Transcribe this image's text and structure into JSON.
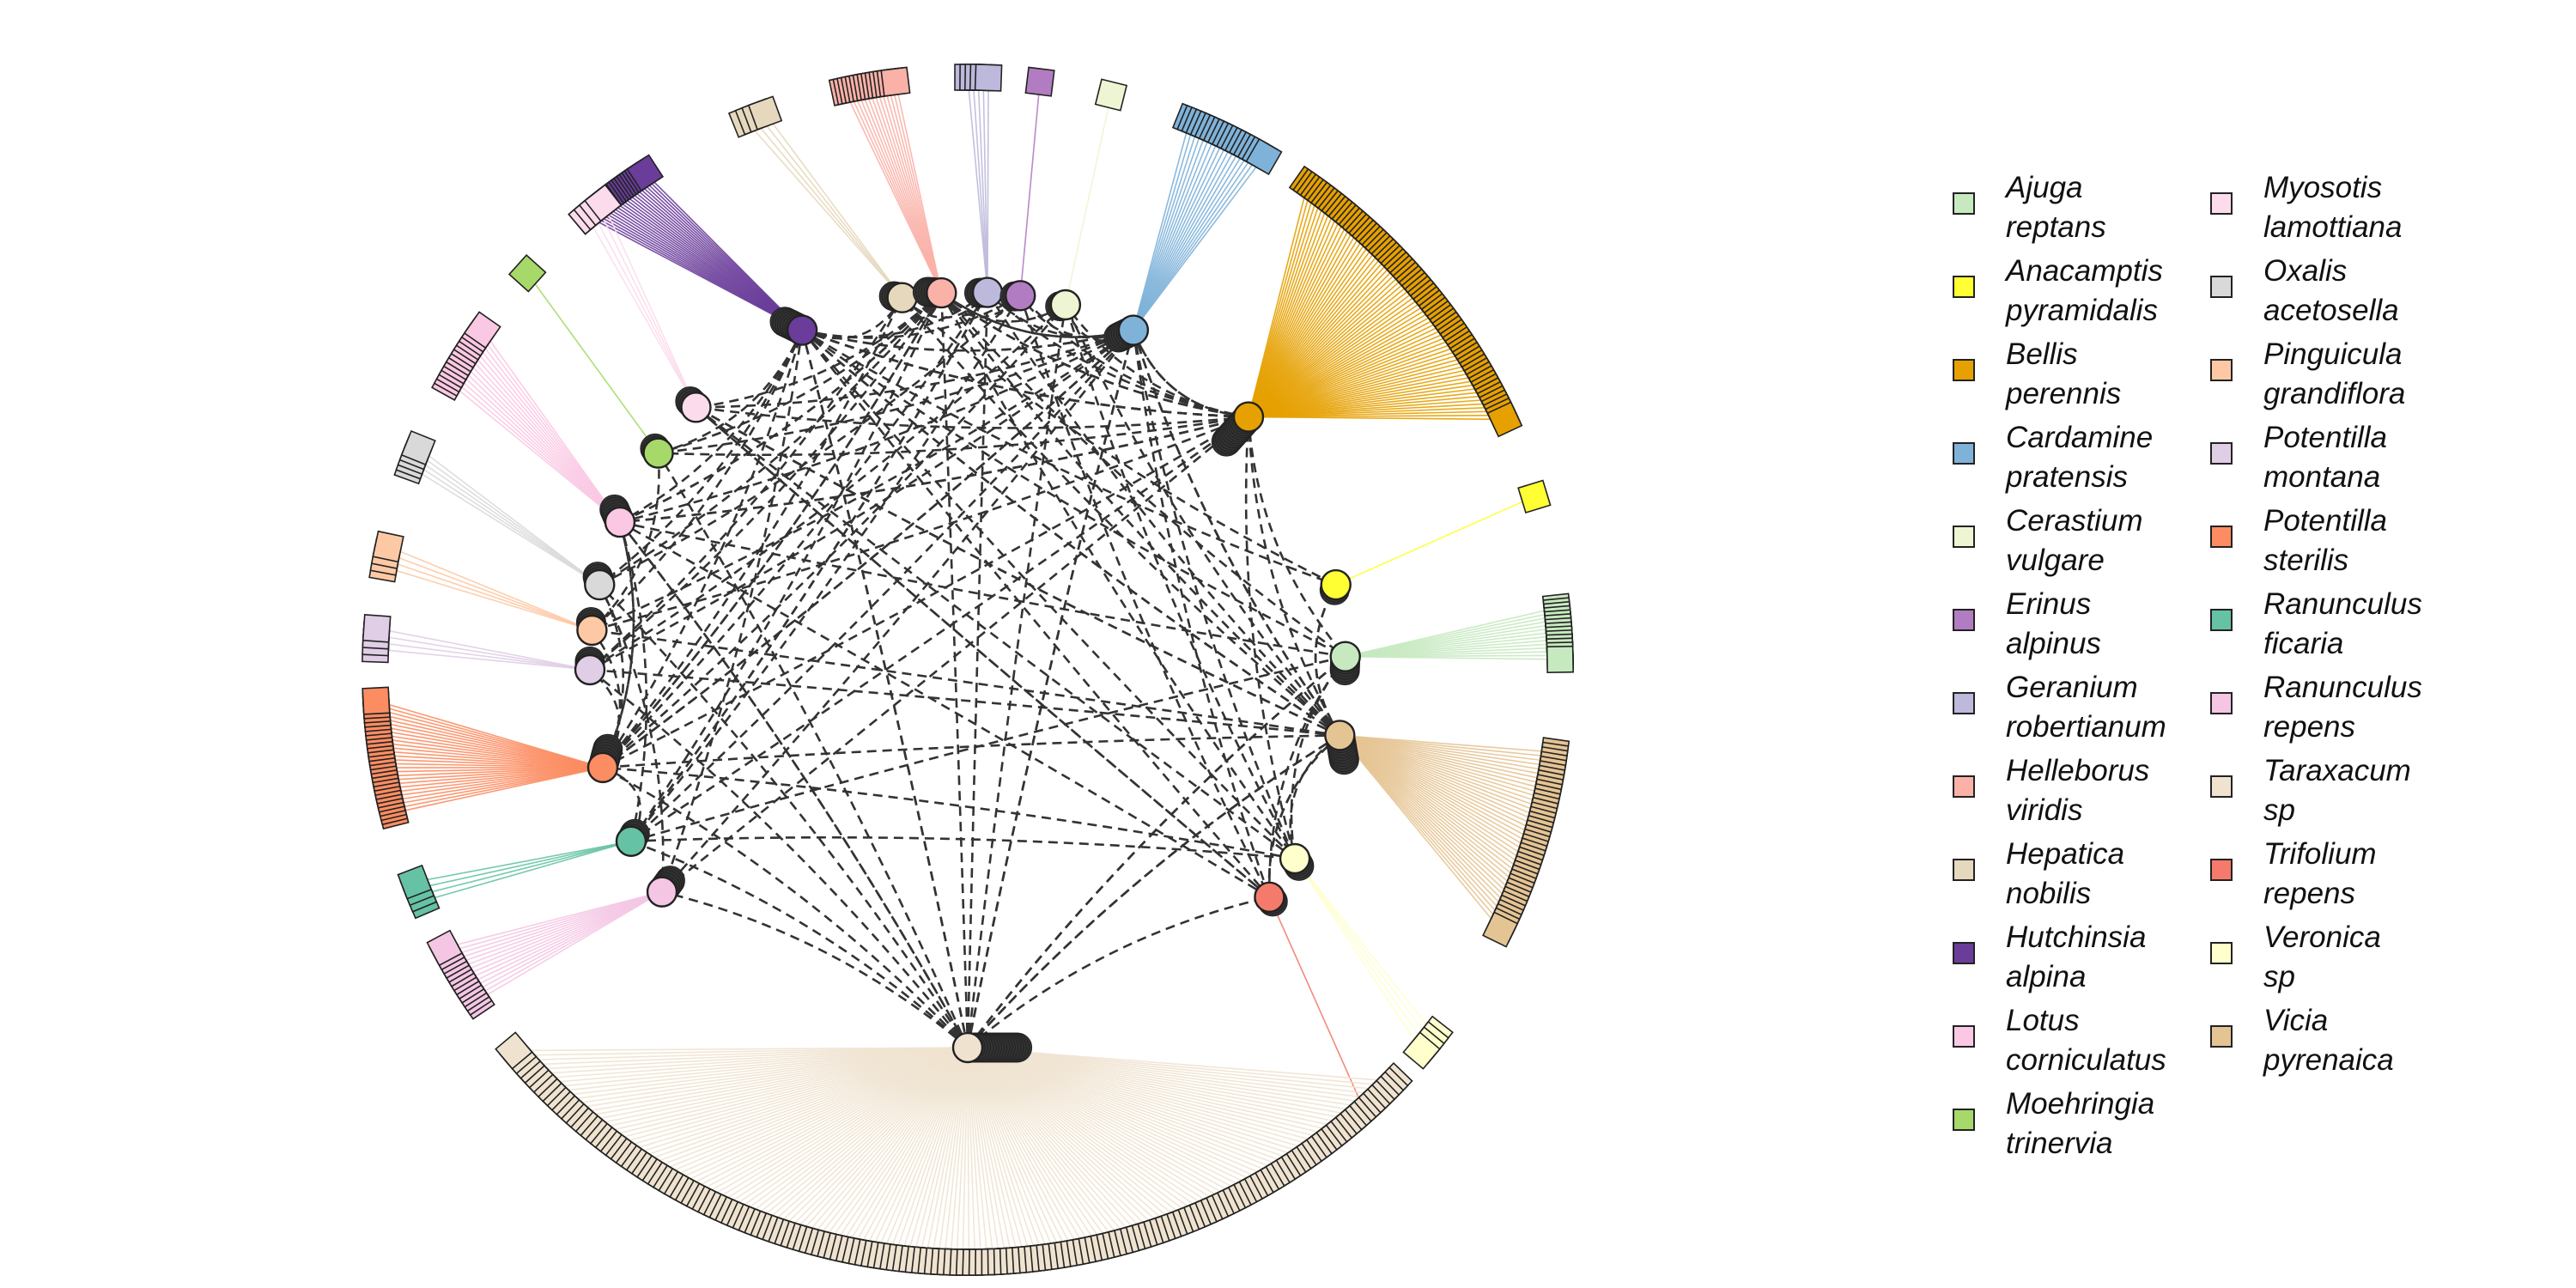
{
  "legend": {
    "columns": [
      [
        {
          "genus": "Ajuga",
          "species": "reptans",
          "color": "#c7e9c0"
        },
        {
          "genus": "Anacamptis",
          "species": "pyramidalis",
          "color": "#ffff33"
        },
        {
          "genus": "Bellis",
          "species": "perennis",
          "color": "#e6a000"
        },
        {
          "genus": "Cardamine",
          "species": "pratensis",
          "color": "#7fb2d9"
        },
        {
          "genus": "Cerastium",
          "species": "vulgare",
          "color": "#eef5d2"
        },
        {
          "genus": "Erinus",
          "species": "alpinus",
          "color": "#b27cc2"
        },
        {
          "genus": "Geranium",
          "species": "robertianum",
          "color": "#bdb9dc"
        },
        {
          "genus": "Helleborus",
          "species": "viridis",
          "color": "#f9b1a8"
        },
        {
          "genus": "Hepatica",
          "species": "nobilis",
          "color": "#e6d8bd"
        },
        {
          "genus": "Hutchinsia",
          "species": "alpina",
          "color": "#6a3d9a"
        },
        {
          "genus": "Lotus",
          "species": "corniculatus",
          "color": "#fbc8e3"
        },
        {
          "genus": "Moehringia",
          "species": "trinervia",
          "color": "#a6d96a"
        }
      ],
      [
        {
          "genus": "Myosotis",
          "species": "lamottiana",
          "color": "#fcdcec"
        },
        {
          "genus": "Oxalis",
          "species": "acetosella",
          "color": "#d9d9d9"
        },
        {
          "genus": "Pinguicula",
          "species": "grandiflora",
          "color": "#fdc9a4"
        },
        {
          "genus": "Potentilla",
          "species": "montana",
          "color": "#e0cde6"
        },
        {
          "genus": "Potentilla",
          "species": "sterilis",
          "color": "#fc8d62"
        },
        {
          "genus": "Ranunculus",
          "species": "ficaria",
          "color": "#66c2a5"
        },
        {
          "genus": "Ranunculus",
          "species": "repens",
          "color": "#f4c6e4"
        },
        {
          "genus": "Taraxacum",
          "species": "sp",
          "color": "#efe3d0"
        },
        {
          "genus": "Trifolium",
          "species": "repens",
          "color": "#f47b6b"
        },
        {
          "genus": "Veronica",
          "species": "sp",
          "color": "#ffffcc"
        },
        {
          "genus": "Vicia",
          "species": "pyrenaica",
          "color": "#e5c494"
        }
      ]
    ]
  },
  "network": {
    "edge_color": "#333333",
    "node_outline": "#222222",
    "plants": [
      {
        "key": "Hutchinsia alpina",
        "color": "#6a3d9a",
        "n_pollinators": 24
      },
      {
        "key": "Hepatica nobilis",
        "color": "#e6d8bd",
        "n_pollinators": 4
      },
      {
        "key": "Helleborus viridis",
        "color": "#f9b1a8",
        "n_pollinators": 14
      },
      {
        "key": "Geranium robertianum",
        "color": "#bdb9dc",
        "n_pollinators": 5
      },
      {
        "key": "Erinus alpinus",
        "color": "#b27cc2",
        "n_pollinators": 1
      },
      {
        "key": "Cerastium vulgare",
        "color": "#eef5d2",
        "n_pollinators": 1
      },
      {
        "key": "Cardamine pratensis",
        "color": "#7fb2d9",
        "n_pollinators": 18
      },
      {
        "key": "Bellis perennis",
        "color": "#e6a000",
        "n_pollinators": 70
      },
      {
        "key": "Anacamptis pyramidalis",
        "color": "#ffff33",
        "n_pollinators": 1
      },
      {
        "key": "Ajuga reptans",
        "color": "#c7e9c0",
        "n_pollinators": 14
      },
      {
        "key": "Vicia pyrenaica",
        "color": "#e5c494",
        "n_pollinators": 40
      },
      {
        "key": "Veronica sp",
        "color": "#ffffcc",
        "n_pollinators": 4
      },
      {
        "key": "Trifolium repens",
        "color": "#f47b6b",
        "n_pollinators": 1
      },
      {
        "key": "Taraxacum sp",
        "color": "#efe3d0",
        "n_pollinators": 160
      },
      {
        "key": "Ranunculus repens",
        "color": "#f4c6e4",
        "n_pollinators": 14
      },
      {
        "key": "Ranunculus ficaria",
        "color": "#66c2a5",
        "n_pollinators": 4
      },
      {
        "key": "Potentilla sterilis",
        "color": "#fc8d62",
        "n_pollinators": 28
      },
      {
        "key": "Potentilla montana",
        "color": "#e0cde6",
        "n_pollinators": 4
      },
      {
        "key": "Pinguicula grandiflora",
        "color": "#fdc9a4",
        "n_pollinators": 4
      },
      {
        "key": "Oxalis acetosella",
        "color": "#d9d9d9",
        "n_pollinators": 5
      },
      {
        "key": "Lotus corniculatus",
        "color": "#fbc8e3",
        "n_pollinators": 14
      },
      {
        "key": "Moehringia trinervia",
        "color": "#a6d96a",
        "n_pollinators": 1
      },
      {
        "key": "Myosotis lamottiana",
        "color": "#fcdcec",
        "n_pollinators": 4
      }
    ]
  }
}
